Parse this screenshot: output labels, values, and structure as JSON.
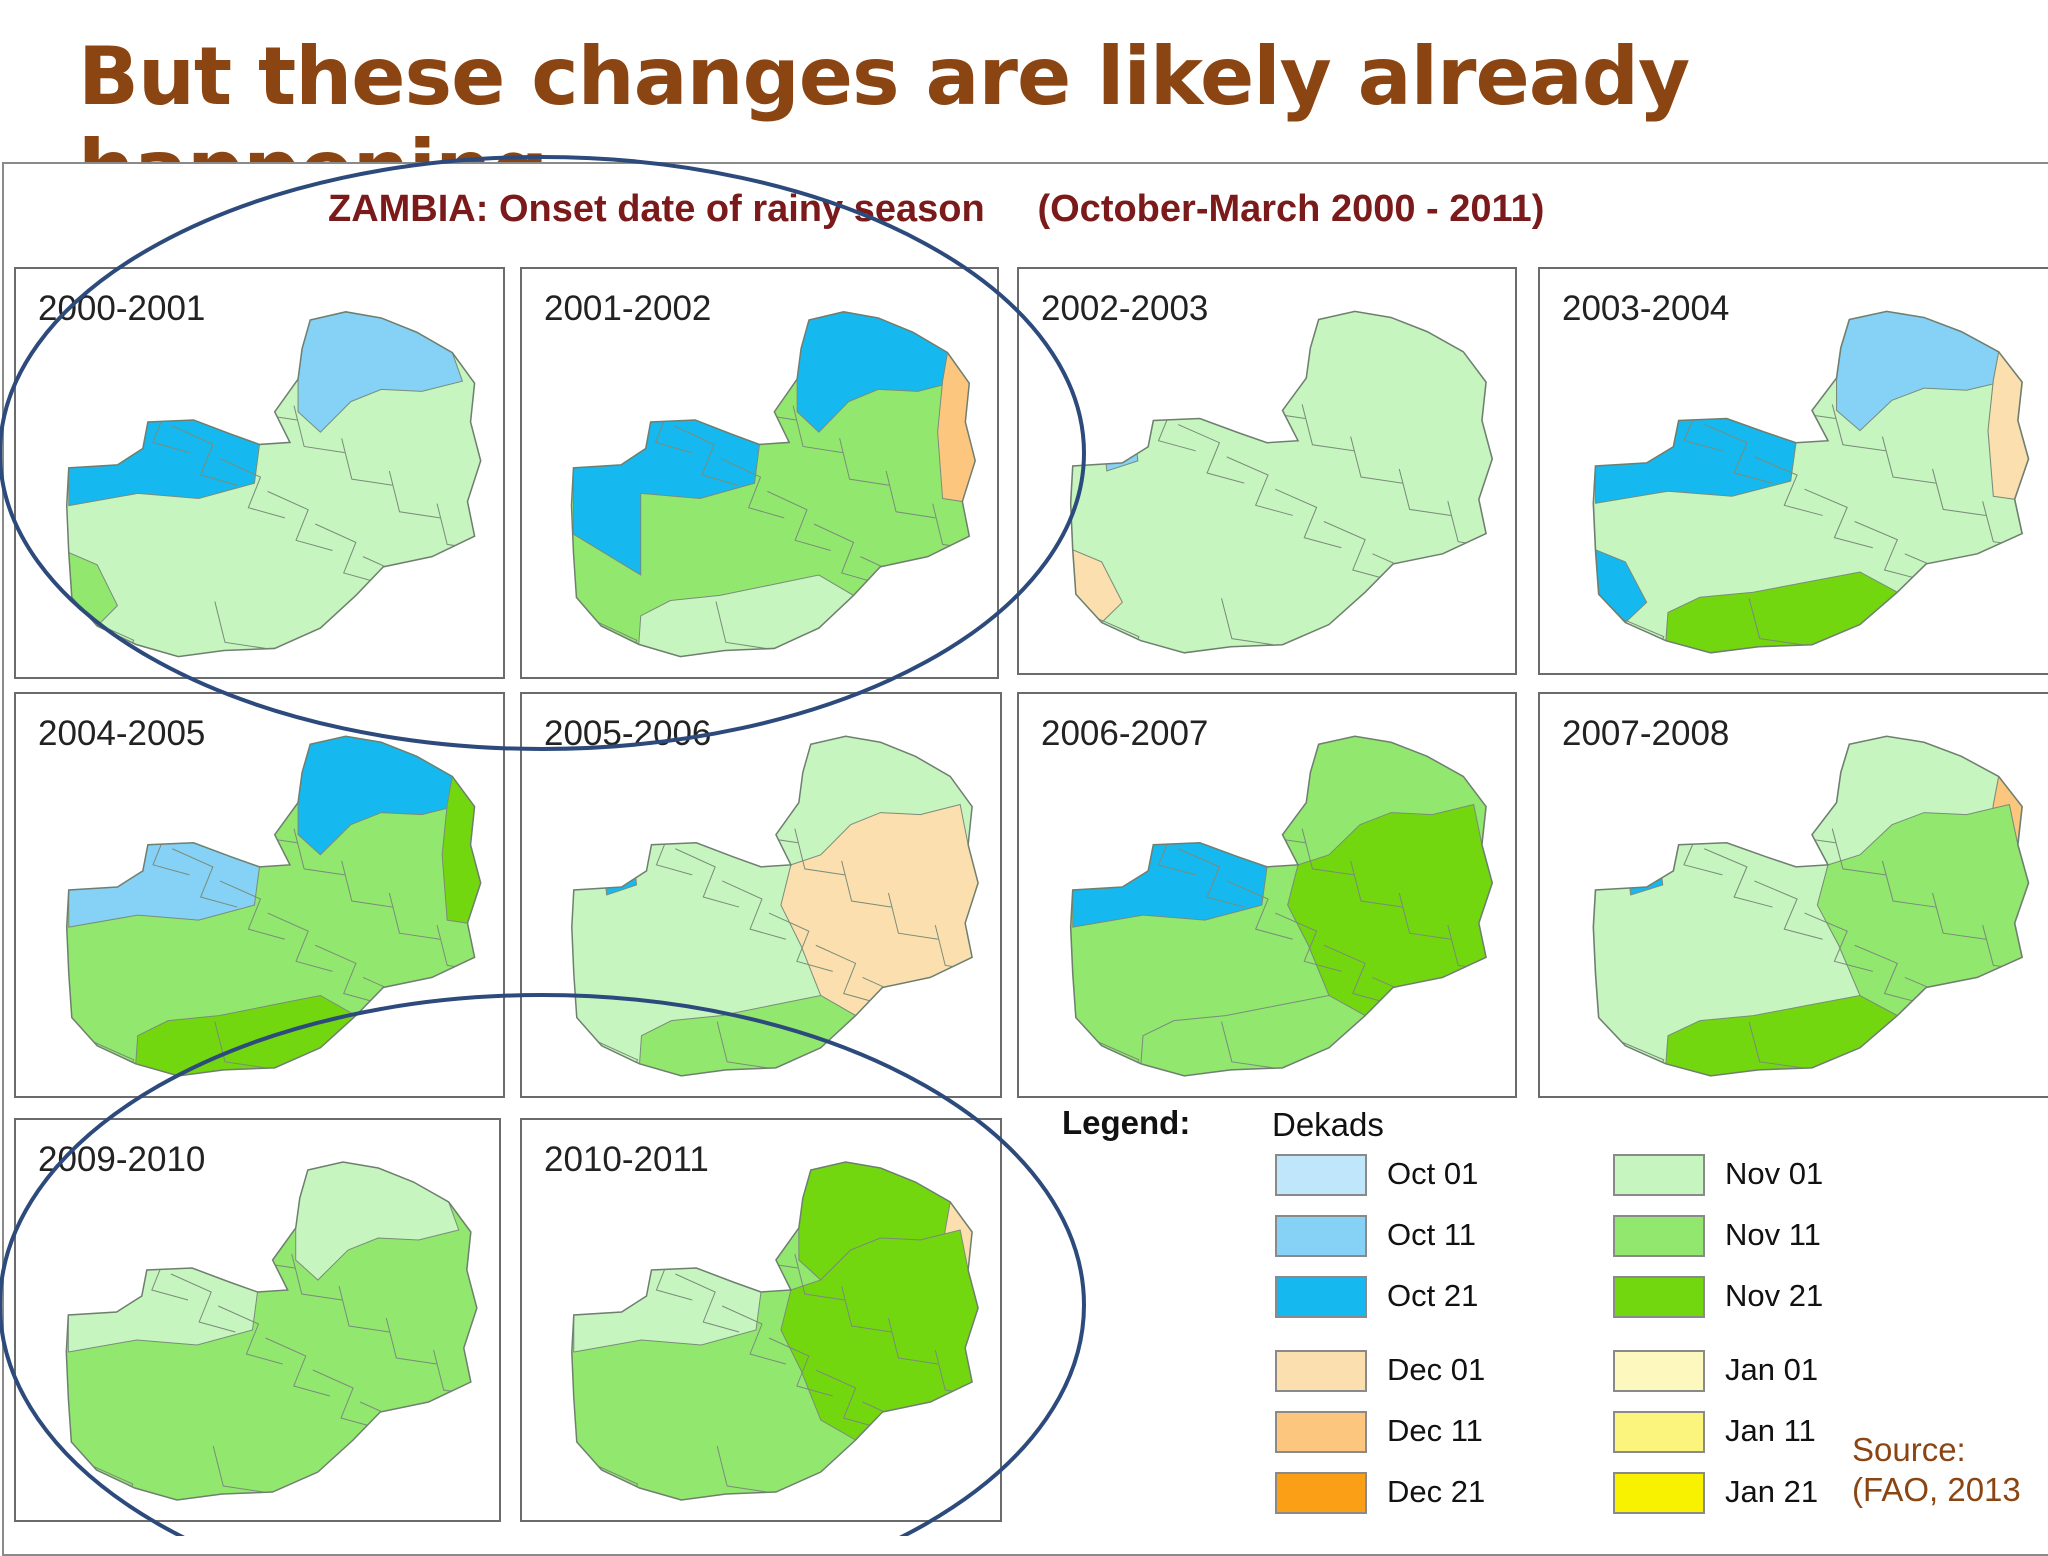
{
  "slide": {
    "title": "But these changes are likely already happening...",
    "title_color": "#8b4513"
  },
  "map": {
    "title": "ZAMBIA: Onset date of rainy season",
    "period": "(October-March 2000 - 2011)",
    "panels": [
      {
        "label": "2000-2001",
        "highlighted": true
      },
      {
        "label": "2001-2002",
        "highlighted": true
      },
      {
        "label": "2002-2003",
        "highlighted": false
      },
      {
        "label": "2003-2004",
        "highlighted": false
      },
      {
        "label": "2004-2005",
        "highlighted": false
      },
      {
        "label": "2005-2006",
        "highlighted": false
      },
      {
        "label": "2006-2007",
        "highlighted": false
      },
      {
        "label": "2007-2008",
        "highlighted": false
      },
      {
        "label": "2009-2010",
        "highlighted": true
      },
      {
        "label": "2010-2011",
        "highlighted": true
      }
    ]
  },
  "legend": {
    "heading": "Legend:",
    "subheading": "Dekads",
    "items": [
      {
        "label": "Oct 01",
        "color": "#bfe6fb"
      },
      {
        "label": "Oct 11",
        "color": "#86d2f6"
      },
      {
        "label": "Oct 21",
        "color": "#15b9ef"
      },
      {
        "label": "Dec 01",
        "color": "#fbdfae"
      },
      {
        "label": "Dec 11",
        "color": "#fcc67e"
      },
      {
        "label": "Dec 21",
        "color": "#fb9f16"
      },
      {
        "label": "Nov 01",
        "color": "#c6f5bf"
      },
      {
        "label": "Nov 11",
        "color": "#92e86e"
      },
      {
        "label": "Nov 21",
        "color": "#73d70f"
      },
      {
        "label": "Jan 01",
        "color": "#fdf8be"
      },
      {
        "label": "Jan 11",
        "color": "#fbf57e"
      },
      {
        "label": "Jan 21",
        "color": "#f8f200"
      }
    ]
  },
  "source": {
    "line1": "Source:",
    "line2": "(FAO, 2013"
  },
  "colors": {
    "ellipse": "#2d4a7c",
    "map_title": "#7b1a1a",
    "district_border": "#7a8c7a"
  }
}
